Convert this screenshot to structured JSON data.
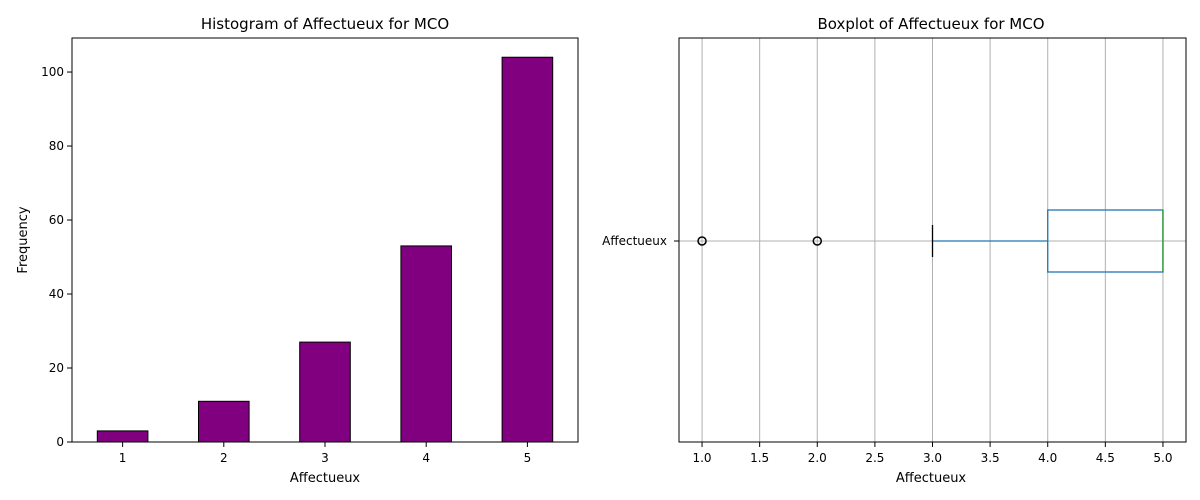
{
  "chart_data": [
    {
      "type": "bar",
      "title": "Histogram of Affectueux for MCO",
      "xlabel": "Affectueux",
      "ylabel": "Frequency",
      "categories": [
        "1",
        "2",
        "3",
        "4",
        "5"
      ],
      "values": [
        3,
        11,
        27,
        53,
        104
      ],
      "ylim": [
        0,
        109.2
      ],
      "yticks": [
        "0",
        "20",
        "40",
        "60",
        "80",
        "100"
      ],
      "bar_color": "#800080",
      "edge_color": "#000000",
      "grid": false
    },
    {
      "type": "boxplot",
      "orientation": "horizontal",
      "title": "Boxplot of Affectueux for MCO",
      "xlabel": "Affectueux",
      "category": "Affectueux",
      "whisker_low": 3.0,
      "q1": 4.0,
      "median": 5.0,
      "q3": 5.0,
      "whisker_high": 5.0,
      "outliers": [
        1.0,
        2.0
      ],
      "xlim": [
        0.8,
        5.2
      ],
      "xticks": [
        "1.0",
        "1.5",
        "2.0",
        "2.5",
        "3.0",
        "3.5",
        "4.0",
        "4.5",
        "5.0"
      ],
      "box_color": "#1f77b4",
      "median_color": "#2ca02c",
      "grid": true
    }
  ]
}
